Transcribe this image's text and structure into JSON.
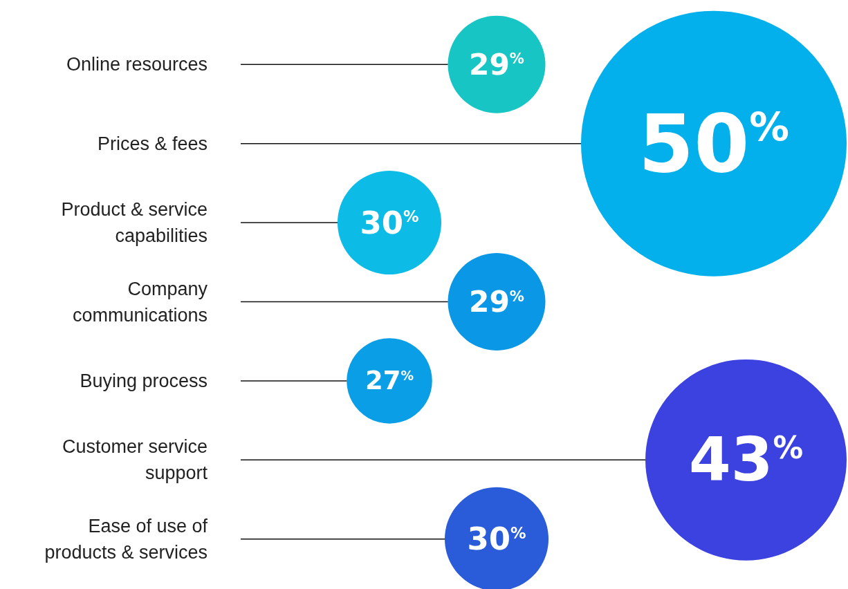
{
  "chart_data": {
    "type": "other",
    "categories": [
      "Online resources",
      "Prices & fees",
      "Product & service\ncapabilities",
      "Company\ncommunications",
      "Buying process",
      "Customer service\nsupport",
      "Ease of use of\nproducts & services"
    ],
    "values": [
      29,
      50,
      30,
      29,
      27,
      43,
      30
    ],
    "value_labels": [
      "29%",
      "50%",
      "30%",
      "29%",
      "27%",
      "43%",
      "30%"
    ],
    "colors": [
      "#17c6c4",
      "#03b0ec",
      "#0cbce6",
      "#0a98e6",
      "#0a9ee6",
      "#3b42e0",
      "#2a5bd9"
    ]
  }
}
